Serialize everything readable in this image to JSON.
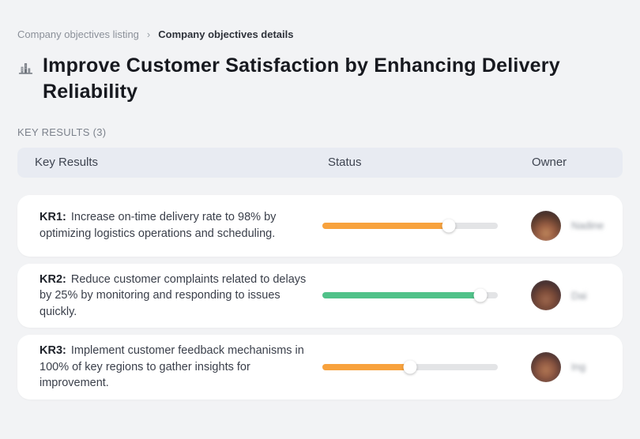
{
  "breadcrumb": {
    "separator": "›",
    "items": [
      {
        "label": "Company objectives listing"
      },
      {
        "label": "Company objectives details"
      }
    ]
  },
  "page": {
    "title": "Improve Customer Satisfaction by Enhancing Delivery Reliability",
    "title_icon": "building-skyline-icon"
  },
  "section": {
    "label": "KEY RESULTS (3)"
  },
  "table": {
    "headers": {
      "key_results": "Key Results",
      "status": "Status",
      "owner": "Owner"
    },
    "rows": [
      {
        "kr_label": "KR1:",
        "description": "Increase on-time delivery rate to 98% by optimizing logistics operations and scheduling.",
        "progress_percent": 72,
        "progress_color": "#F8A23D",
        "owner_name": "Nadine",
        "avatar_class": "avatar-1"
      },
      {
        "kr_label": "KR2:",
        "description": "Reduce customer complaints related to delays by 25% by monitoring and responding to issues quickly.",
        "progress_percent": 90,
        "progress_color": "#50C289",
        "owner_name": "Dai",
        "avatar_class": "avatar-2"
      },
      {
        "kr_label": "KR3:",
        "description": "Implement customer feedback mechanisms in 100% of key regions to gather insights for improvement.",
        "progress_percent": 50,
        "progress_color": "#F8A23D",
        "owner_name": "Ing",
        "avatar_class": "avatar-3"
      }
    ]
  },
  "colors": {
    "page_background": "#F2F3F5",
    "header_bar": "#E8EBF2",
    "card": "#FFFFFF",
    "progress_track": "#E3E4E6",
    "accent_orange": "#F8A23D",
    "accent_green": "#50C289"
  }
}
